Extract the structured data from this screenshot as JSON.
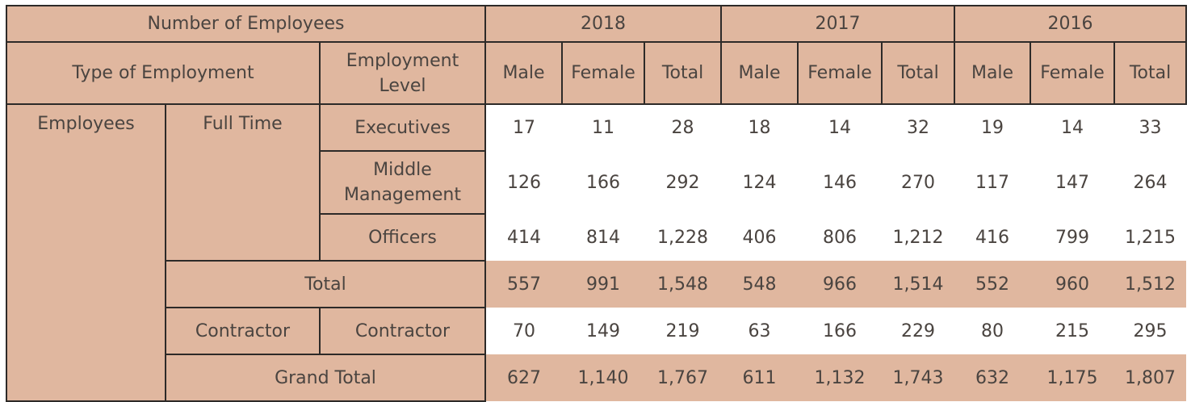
{
  "header": {
    "number_of_employees": "Number of Employees",
    "years": [
      "2018",
      "2017",
      "2016"
    ],
    "type_of_employment": "Type of Employment",
    "employment_level": [
      "Employment",
      "Level"
    ],
    "sub": [
      "Male",
      "Female",
      "Total",
      "Male",
      "Female",
      "Total",
      "Male",
      "Female",
      "Total"
    ]
  },
  "labels": {
    "employees": "Employees",
    "full_time": "Full Time",
    "executives": "Executives",
    "middle_management": [
      "Middle",
      "Management"
    ],
    "officers": "Officers",
    "total": "Total",
    "contractor_type": "Contractor",
    "contractor_level": "Contractor",
    "grand_total": "Grand Total"
  },
  "rows": {
    "executives": [
      "17",
      "11",
      "28",
      "18",
      "14",
      "32",
      "19",
      "14",
      "33"
    ],
    "middle_management": [
      "126",
      "166",
      "292",
      "124",
      "146",
      "270",
      "117",
      "147",
      "264"
    ],
    "officers": [
      "414",
      "814",
      "1,228",
      "406",
      "806",
      "1,212",
      "416",
      "799",
      "1,215"
    ],
    "total": [
      "557",
      "991",
      "1,548",
      "548",
      "966",
      "1,514",
      "552",
      "960",
      "1,512"
    ],
    "contractor": [
      "70",
      "149",
      "219",
      "63",
      "166",
      "229",
      "80",
      "215",
      "295"
    ],
    "grand_total": [
      "627",
      "1,140",
      "1,767",
      "611",
      "1,132",
      "1,743",
      "632",
      "1,175",
      "1,807"
    ]
  }
}
